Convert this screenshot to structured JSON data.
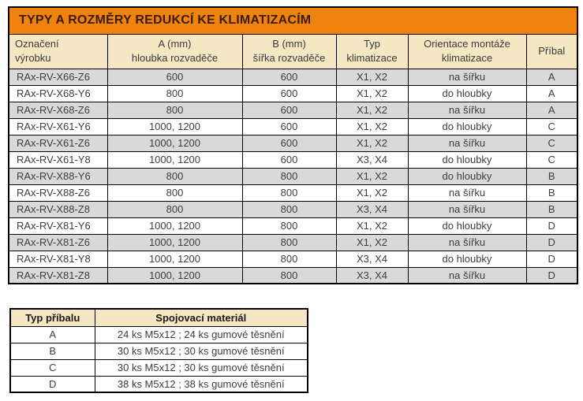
{
  "colors": {
    "title-bg": "#f0830d",
    "title-text": "#3b1c00",
    "header-bg": "#f5e7c3",
    "row-alt-bg": "#d9d9d9",
    "row-bg": "#ffffff",
    "border": "#000000",
    "text": "#3e3e3e"
  },
  "main_table": {
    "title": "TYPY A ROZMĚRY REDUKCÍ KE KLIMATIZACÍM",
    "headers": [
      "Označení\nvýrobku",
      "A (mm)\nhloubka rozvaděče",
      "B (mm)\nšířka rozvaděče",
      "Typ\nklimatizace",
      "Orientace montáže\nklimatizace",
      "Příbal"
    ],
    "rows": [
      [
        "RAx-RV-X66-Z6",
        "600",
        "600",
        "X1, X2",
        "na šířku",
        "A"
      ],
      [
        "RAx-RV-X68-Y6",
        "800",
        "600",
        "X1, X2",
        "do hloubky",
        "A"
      ],
      [
        "RAx-RV-X68-Z6",
        "800",
        "600",
        "X1, X2",
        "na šířku",
        "A"
      ],
      [
        "RAx-RV-X61-Y6",
        "1000, 1200",
        "600",
        "X1, X2",
        "do hloubky",
        "C"
      ],
      [
        "RAx-RV-X61-Z6",
        "1000, 1200",
        "600",
        "X1, X2",
        "na šířku",
        "C"
      ],
      [
        "RAx-RV-X61-Y8",
        "1000, 1200",
        "600",
        "X3, X4",
        "do hloubky",
        "C"
      ],
      [
        "RAx-RV-X88-Y6",
        "800",
        "800",
        "X1, X2",
        "do hloubky",
        "B"
      ],
      [
        "RAx-RV-X88-Z6",
        "800",
        "800",
        "X1, X2",
        "na šířku",
        "B"
      ],
      [
        "RAx-RV-X88-Z8",
        "800",
        "800",
        "X3, X4",
        "na šířku",
        "B"
      ],
      [
        "RAx-RV-X81-Y6",
        "1000, 1200",
        "800",
        "X1, X2",
        "do hloubky",
        "D"
      ],
      [
        "RAx-RV-X81-Z6",
        "1000, 1200",
        "800",
        "X1, X2",
        "na šířku",
        "D"
      ],
      [
        "RAx-RV-X81-Y8",
        "1000, 1200",
        "800",
        "X3, X4",
        "do hloubky",
        "D"
      ],
      [
        "RAx-RV-X81-Z8",
        "1000, 1200",
        "800",
        "X3, X4",
        "na šířku",
        "D"
      ]
    ]
  },
  "accessory_table": {
    "headers": [
      "Typ příbalu",
      "Spojovací materiál"
    ],
    "rows": [
      [
        "A",
        "24 ks M5x12 ; 24 ks gumové těsnění"
      ],
      [
        "B",
        "30 ks M5x12 ; 30 ks gumové těsnění"
      ],
      [
        "C",
        "30 ks M5x12 ; 30 ks gumové těsnění"
      ],
      [
        "D",
        "38 ks M5x12 ; 38 ks gumové těsnění"
      ]
    ]
  }
}
